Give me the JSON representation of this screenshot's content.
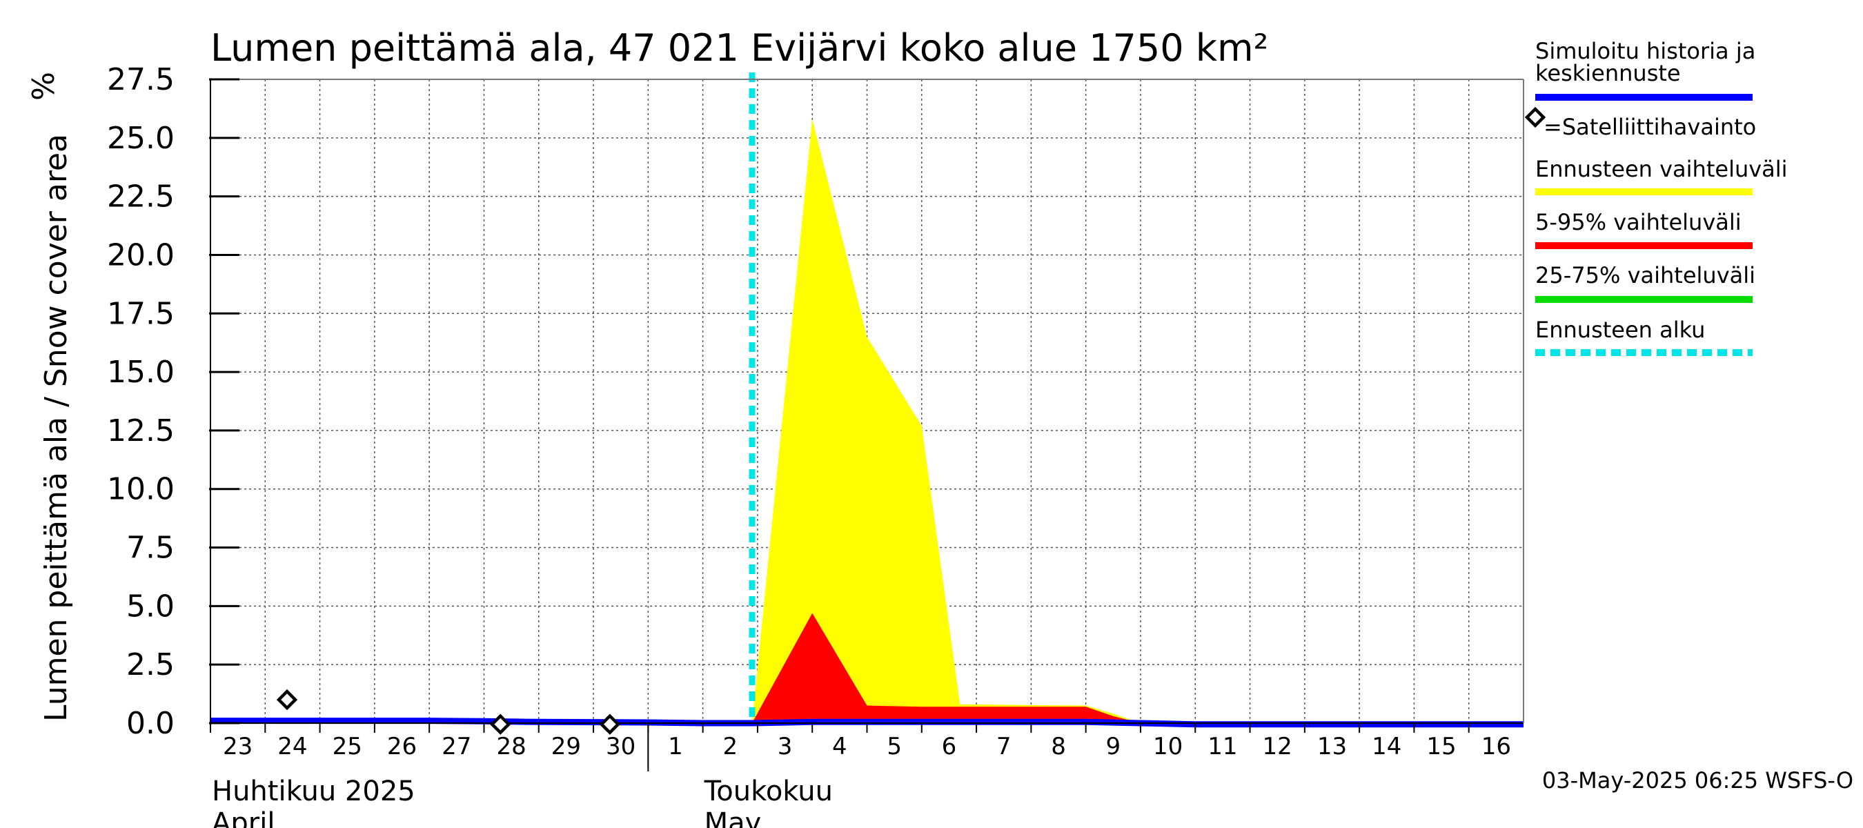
{
  "chart_data": {
    "type": "area",
    "title": "Lumen peittämä ala, 47 021 Evijärvi koko alue 1750 km²",
    "ylabel": "Lumen peittämä ala / Snow cover area",
    "yunit": "%",
    "ylim": [
      0,
      27.5
    ],
    "yticks": [
      0,
      2.5,
      5,
      7.5,
      10,
      12.5,
      15,
      17.5,
      20,
      22.5,
      25,
      27.5
    ],
    "ytick_labels": [
      "0.0",
      "2.5",
      "5.0",
      "7.5",
      "10.0",
      "12.5",
      "15.0",
      "17.5",
      "20.0",
      "22.5",
      "25.0",
      "27.5"
    ],
    "xlim": [
      -0.5,
      23.5
    ],
    "x_day_labels": [
      "23",
      "24",
      "25",
      "26",
      "27",
      "28",
      "29",
      "30",
      "1",
      "2",
      "3",
      "4",
      "5",
      "6",
      "7",
      "8",
      "9",
      "10",
      "11",
      "12",
      "13",
      "14",
      "15",
      "16"
    ],
    "month_separator_x": 7.5,
    "month_labels": [
      {
        "x": 0.0,
        "fi": "Huhtikuu  2025",
        "en": "April"
      },
      {
        "x": 9.0,
        "fi": "Toukokuu",
        "en": "May"
      }
    ],
    "forecast_start_x": 9.4,
    "grid": true,
    "series": [
      {
        "name": "Ennusteen vaihteluväli",
        "kind": "band",
        "color": "#ffff00",
        "x": [
          9.4,
          10.5,
          11.5,
          12.5,
          13.2,
          15.5,
          16.0,
          16.5
        ],
        "lower": [
          0,
          0,
          0,
          0,
          0,
          0,
          0,
          0
        ],
        "upper": [
          0,
          25.8,
          16.5,
          12.7,
          0.8,
          0.75,
          0.4,
          0
        ]
      },
      {
        "name": "5-95% vaihteluväli",
        "kind": "band",
        "color": "#ff0000",
        "x": [
          9.4,
          10.5,
          11.5,
          12.5,
          15.5,
          16.0,
          16.5
        ],
        "lower": [
          0,
          0,
          0,
          0,
          0,
          0,
          0
        ],
        "upper": [
          0,
          4.7,
          0.75,
          0.7,
          0.7,
          0.3,
          0
        ]
      },
      {
        "name": "Simuloitu historia ja keskiennuste",
        "kind": "line",
        "color": "#0000ff",
        "x": [
          -0.5,
          0.5,
          1.5,
          2.5,
          3.5,
          4.5,
          5.5,
          6.5,
          7.5,
          8.5,
          9.4,
          10.5,
          11.5,
          12.5,
          13.5,
          14.5,
          15.5,
          16.5,
          17.5,
          18.5,
          19.5,
          20.5,
          21.5,
          22.5,
          23.5
        ],
        "y": [
          0.1,
          0.1,
          0.1,
          0.1,
          0.1,
          0.08,
          0.05,
          0.04,
          0.03,
          0.0,
          0.0,
          0.05,
          0.05,
          0.05,
          0.05,
          0.05,
          0.05,
          0.0,
          -0.05,
          -0.05,
          -0.05,
          -0.05,
          -0.05,
          -0.05,
          -0.05
        ]
      },
      {
        "name": "Satelliittihavainto",
        "kind": "scatter",
        "marker": "diamond",
        "color": "#000000",
        "x": [
          0.9,
          4.8,
          6.8
        ],
        "y": [
          1.0,
          -0.05,
          -0.05
        ]
      }
    ],
    "legend": [
      {
        "label": "Simuloitu historia ja keskiennuste",
        "style": "line",
        "color": "#0000ff"
      },
      {
        "label": "=Satelliittihavainto",
        "style": "diamond",
        "color": "#000000"
      },
      {
        "label": "Ennusteen vaihteluväli",
        "style": "line",
        "color": "#ffff00"
      },
      {
        "label": "5-95% vaihteluväli",
        "style": "line",
        "color": "#ff0000"
      },
      {
        "label": "25-75% vaihteluväli",
        "style": "line",
        "color": "#00dd00"
      },
      {
        "label": "Ennusteen alku",
        "style": "dashed",
        "color": "#00e5e5"
      }
    ],
    "legend_position": "right",
    "footer": "03-May-2025 06:25 WSFS-O"
  }
}
